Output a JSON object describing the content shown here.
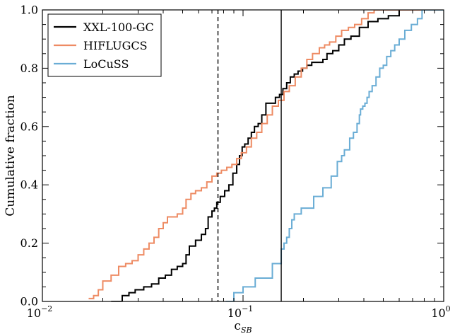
{
  "chart_data": {
    "type": "line",
    "step": true,
    "xscale": "log",
    "xlim": [
      0.01,
      1.0
    ],
    "ylim": [
      0.0,
      1.0
    ],
    "xlabel": "c",
    "xlabel_sub": "SB",
    "ylabel": "Cumulative fraction",
    "legend_position": "top-left",
    "grid": false,
    "x_ticks": [
      {
        "value": 0.01,
        "base": "10",
        "exp": "−2"
      },
      {
        "value": 0.1,
        "base": "10",
        "exp": "−1"
      },
      {
        "value": 1.0,
        "base": "10",
        "exp": "0"
      }
    ],
    "y_ticks": [
      {
        "value": 0.0,
        "label": "0.0"
      },
      {
        "value": 0.2,
        "label": "0.2"
      },
      {
        "value": 0.4,
        "label": "0.4"
      },
      {
        "value": 0.6,
        "label": "0.6"
      },
      {
        "value": 0.8,
        "label": "0.8"
      },
      {
        "value": 1.0,
        "label": "1.0"
      }
    ],
    "reference_lines": [
      {
        "x": 0.075,
        "style": "dashed",
        "color": "#000000"
      },
      {
        "x": 0.155,
        "style": "solid",
        "color": "#000000"
      }
    ],
    "series": [
      {
        "name": "XXL-100-GC",
        "color": "#000000",
        "x": [
          0.022,
          0.025,
          0.027,
          0.029,
          0.032,
          0.035,
          0.038,
          0.041,
          0.044,
          0.047,
          0.05,
          0.052,
          0.054,
          0.058,
          0.062,
          0.065,
          0.067,
          0.07,
          0.072,
          0.074,
          0.077,
          0.081,
          0.085,
          0.089,
          0.093,
          0.096,
          0.099,
          0.102,
          0.106,
          0.11,
          0.114,
          0.119,
          0.124,
          0.13,
          0.137,
          0.145,
          0.152,
          0.158,
          0.165,
          0.172,
          0.18,
          0.188,
          0.198,
          0.208,
          0.22,
          0.235,
          0.25,
          0.262,
          0.28,
          0.3,
          0.32,
          0.345,
          0.38,
          0.42,
          0.47,
          0.53,
          0.6,
          0.8
        ],
        "y": [
          0.0,
          0.02,
          0.03,
          0.04,
          0.05,
          0.06,
          0.08,
          0.09,
          0.11,
          0.12,
          0.13,
          0.16,
          0.19,
          0.21,
          0.23,
          0.25,
          0.29,
          0.31,
          0.32,
          0.34,
          0.36,
          0.38,
          0.4,
          0.44,
          0.47,
          0.5,
          0.53,
          0.54,
          0.56,
          0.58,
          0.6,
          0.61,
          0.64,
          0.68,
          0.68,
          0.7,
          0.71,
          0.73,
          0.75,
          0.77,
          0.78,
          0.79,
          0.8,
          0.81,
          0.82,
          0.82,
          0.83,
          0.85,
          0.86,
          0.88,
          0.9,
          0.91,
          0.94,
          0.96,
          0.97,
          0.98,
          1.0,
          1.0
        ]
      },
      {
        "name": "HIFLUGCS",
        "color": "#ee8b63",
        "x": [
          0.017,
          0.018,
          0.019,
          0.02,
          0.022,
          0.024,
          0.026,
          0.028,
          0.03,
          0.032,
          0.034,
          0.036,
          0.038,
          0.04,
          0.042,
          0.044,
          0.047,
          0.05,
          0.052,
          0.055,
          0.058,
          0.062,
          0.066,
          0.07,
          0.074,
          0.078,
          0.083,
          0.088,
          0.093,
          0.098,
          0.104,
          0.11,
          0.117,
          0.124,
          0.132,
          0.14,
          0.15,
          0.16,
          0.17,
          0.182,
          0.195,
          0.208,
          0.222,
          0.24,
          0.255,
          0.27,
          0.29,
          0.31,
          0.335,
          0.36,
          0.39,
          0.42,
          0.45,
          0.48,
          0.8
        ],
        "y": [
          0.01,
          0.02,
          0.04,
          0.07,
          0.09,
          0.12,
          0.13,
          0.14,
          0.16,
          0.18,
          0.2,
          0.22,
          0.25,
          0.27,
          0.29,
          0.29,
          0.3,
          0.32,
          0.35,
          0.37,
          0.38,
          0.39,
          0.41,
          0.43,
          0.44,
          0.45,
          0.46,
          0.47,
          0.49,
          0.51,
          0.53,
          0.56,
          0.58,
          0.61,
          0.64,
          0.67,
          0.69,
          0.72,
          0.74,
          0.77,
          0.8,
          0.83,
          0.85,
          0.87,
          0.88,
          0.89,
          0.91,
          0.93,
          0.94,
          0.95,
          0.97,
          0.99,
          1.0,
          1.0,
          1.0
        ]
      },
      {
        "name": "LoCuSS",
        "color": "#6aadd5",
        "x": [
          0.082,
          0.09,
          0.1,
          0.115,
          0.14,
          0.155,
          0.16,
          0.165,
          0.17,
          0.175,
          0.18,
          0.195,
          0.225,
          0.25,
          0.275,
          0.295,
          0.31,
          0.32,
          0.34,
          0.355,
          0.37,
          0.38,
          0.385,
          0.395,
          0.405,
          0.415,
          0.425,
          0.44,
          0.46,
          0.48,
          0.5,
          0.52,
          0.545,
          0.57,
          0.6,
          0.64,
          0.69,
          0.74,
          0.78
        ],
        "y": [
          0.0,
          0.03,
          0.05,
          0.08,
          0.13,
          0.18,
          0.2,
          0.22,
          0.25,
          0.28,
          0.3,
          0.32,
          0.36,
          0.39,
          0.43,
          0.48,
          0.5,
          0.52,
          0.56,
          0.58,
          0.61,
          0.64,
          0.66,
          0.67,
          0.68,
          0.7,
          0.72,
          0.74,
          0.77,
          0.8,
          0.81,
          0.84,
          0.86,
          0.88,
          0.9,
          0.93,
          0.95,
          0.97,
          1.0
        ]
      }
    ]
  }
}
